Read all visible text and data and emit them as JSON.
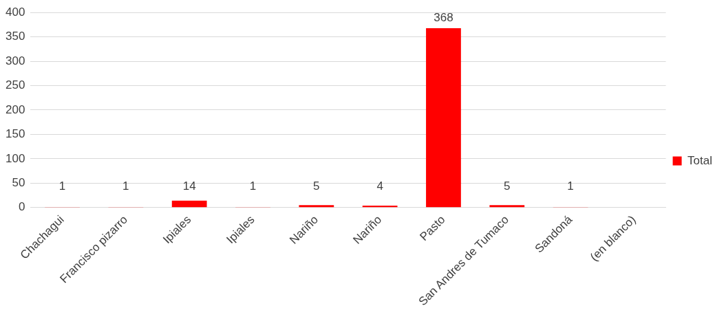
{
  "chart_data": {
    "type": "bar",
    "categories": [
      "Chachagui",
      "Francisco pizarro",
      "Ipiales",
      "Ipiales",
      "Nariño",
      "Nariño",
      "Pasto",
      "San Andres de Tumaco",
      "Sandoná",
      "(en blanco)"
    ],
    "series": [
      {
        "name": "Total",
        "color": "#ff0000",
        "values": [
          1,
          1,
          14,
          1,
          5,
          4,
          368,
          5,
          1,
          null
        ]
      }
    ],
    "ylim": [
      0,
      400
    ],
    "yticks": [
      0,
      50,
      100,
      150,
      200,
      250,
      300,
      350,
      400
    ],
    "grid": "y",
    "legend": "right",
    "data_labels": true
  }
}
